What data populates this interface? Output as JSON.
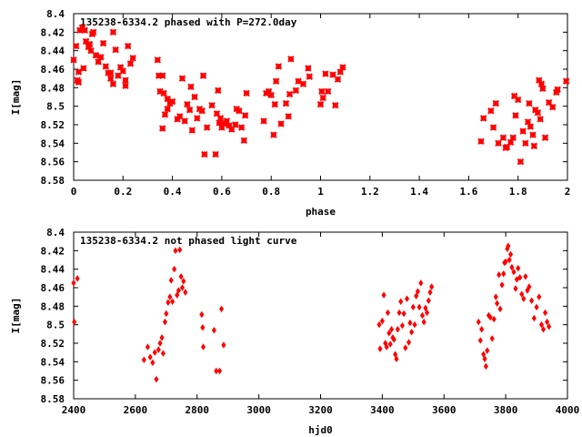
{
  "chart_data": [
    {
      "type": "scatter",
      "title": "135238-6334.2 phased with P=272.0day",
      "xlabel": "phase",
      "ylabel": "I[mag]",
      "xlim": [
        0,
        2
      ],
      "ylim": [
        8.58,
        8.4
      ],
      "y_inverted": true,
      "xticks": [
        "0",
        "0.2",
        "0.4",
        "0.6",
        "0.8",
        "1",
        "1.2",
        "1.4",
        "1.6",
        "1.8",
        "2"
      ],
      "yticks": [
        "8.4",
        "8.42",
        "8.44",
        "8.46",
        "8.48",
        "8.5",
        "8.52",
        "8.54",
        "8.56",
        "8.58"
      ],
      "marker": "star",
      "color": "#ff0000",
      "grid": false,
      "legend": "none",
      "points": [
        [
          0.0,
          8.45
        ],
        [
          0.01,
          8.435
        ],
        [
          0.015,
          8.472
        ],
        [
          0.02,
          8.474
        ],
        [
          0.02,
          8.463
        ],
        [
          0.025,
          8.418
        ],
        [
          0.035,
          8.415
        ],
        [
          0.04,
          8.459
        ],
        [
          0.045,
          8.418
        ],
        [
          0.05,
          8.43
        ],
        [
          0.06,
          8.436
        ],
        [
          0.065,
          8.433
        ],
        [
          0.07,
          8.44
        ],
        [
          0.075,
          8.422
        ],
        [
          0.08,
          8.42
        ],
        [
          0.09,
          8.445
        ],
        [
          0.1,
          8.452
        ],
        [
          0.11,
          8.447
        ],
        [
          0.12,
          8.432
        ],
        [
          0.13,
          8.457
        ],
        [
          0.14,
          8.464
        ],
        [
          0.15,
          8.47
        ],
        [
          0.15,
          8.464
        ],
        [
          0.16,
          8.42
        ],
        [
          0.16,
          8.476
        ],
        [
          0.17,
          8.439
        ],
        [
          0.18,
          8.467
        ],
        [
          0.19,
          8.458
        ],
        [
          0.2,
          8.462
        ],
        [
          0.21,
          8.472
        ],
        [
          0.21,
          8.478
        ],
        [
          0.22,
          8.435
        ],
        [
          0.23,
          8.454
        ],
        [
          0.24,
          8.448
        ],
        [
          0.34,
          8.45
        ],
        [
          0.345,
          8.467
        ],
        [
          0.35,
          8.484
        ],
        [
          0.36,
          8.467
        ],
        [
          0.36,
          8.524
        ],
        [
          0.365,
          8.486
        ],
        [
          0.37,
          8.509
        ],
        [
          0.38,
          8.503
        ],
        [
          0.38,
          8.492
        ],
        [
          0.39,
          8.497
        ],
        [
          0.4,
          8.495
        ],
        [
          0.42,
          8.514
        ],
        [
          0.43,
          8.511
        ],
        [
          0.44,
          8.47
        ],
        [
          0.45,
          8.516
        ],
        [
          0.46,
          8.498
        ],
        [
          0.47,
          8.504
        ],
        [
          0.475,
          8.479
        ],
        [
          0.48,
          8.526
        ],
        [
          0.49,
          8.49
        ],
        [
          0.5,
          8.513
        ],
        [
          0.51,
          8.503
        ],
        [
          0.52,
          8.505
        ],
        [
          0.525,
          8.467
        ],
        [
          0.53,
          8.552
        ],
        [
          0.54,
          8.523
        ],
        [
          0.56,
          8.499
        ],
        [
          0.575,
          8.552
        ],
        [
          0.58,
          8.508
        ],
        [
          0.585,
          8.483
        ],
        [
          0.59,
          8.518
        ],
        [
          0.595,
          8.513
        ],
        [
          0.6,
          8.523
        ],
        [
          0.61,
          8.519
        ],
        [
          0.62,
          8.516
        ],
        [
          0.63,
          8.521
        ],
        [
          0.64,
          8.525
        ],
        [
          0.655,
          8.52
        ],
        [
          0.66,
          8.503
        ],
        [
          0.67,
          8.505
        ],
        [
          0.68,
          8.523
        ],
        [
          0.69,
          8.537
        ],
        [
          0.695,
          8.51
        ],
        [
          0.7,
          8.486
        ],
        [
          0.77,
          8.516
        ],
        [
          0.78,
          8.486
        ],
        [
          0.79,
          8.484
        ],
        [
          0.8,
          8.488
        ],
        [
          0.81,
          8.531
        ],
        [
          0.815,
          8.498
        ],
        [
          0.82,
          8.473
        ],
        [
          0.83,
          8.457
        ],
        [
          0.84,
          8.519
        ],
        [
          0.86,
          8.497
        ],
        [
          0.87,
          8.511
        ],
        [
          0.875,
          8.487
        ],
        [
          0.88,
          8.449
        ],
        [
          0.9,
          8.483
        ],
        [
          0.91,
          8.473
        ],
        [
          0.93,
          8.476
        ],
        [
          0.95,
          8.459
        ],
        [
          0.955,
          8.468
        ],
        [
          1.0,
          8.498
        ],
        [
          1.005,
          8.484
        ],
        [
          1.01,
          8.491
        ],
        [
          1.02,
          8.465
        ],
        [
          1.03,
          8.484
        ],
        [
          1.05,
          8.466
        ],
        [
          1.06,
          8.499
        ],
        [
          1.07,
          8.471
        ],
        [
          1.08,
          8.463
        ],
        [
          1.09,
          8.458
        ],
        [
          1.65,
          8.538
        ],
        [
          1.66,
          8.513
        ],
        [
          1.69,
          8.505
        ],
        [
          1.7,
          8.523
        ],
        [
          1.71,
          8.497
        ],
        [
          1.72,
          8.54
        ],
        [
          1.74,
          8.534
        ],
        [
          1.75,
          8.545
        ],
        [
          1.755,
          8.544
        ],
        [
          1.77,
          8.539
        ],
        [
          1.78,
          8.534
        ],
        [
          1.785,
          8.489
        ],
        [
          1.79,
          8.51
        ],
        [
          1.8,
          8.493
        ],
        [
          1.81,
          8.56
        ],
        [
          1.82,
          8.527
        ],
        [
          1.83,
          8.54
        ],
        [
          1.84,
          8.517
        ],
        [
          1.845,
          8.497
        ],
        [
          1.85,
          8.522
        ],
        [
          1.86,
          8.531
        ],
        [
          1.865,
          8.543
        ],
        [
          1.87,
          8.504
        ],
        [
          1.88,
          8.507
        ],
        [
          1.885,
          8.472
        ],
        [
          1.89,
          8.514
        ],
        [
          1.895,
          8.476
        ],
        [
          1.9,
          8.481
        ],
        [
          1.91,
          8.534
        ],
        [
          1.925,
          8.496
        ],
        [
          1.94,
          8.501
        ],
        [
          1.955,
          8.485
        ],
        [
          1.96,
          8.482
        ],
        [
          1.995,
          8.473
        ]
      ]
    },
    {
      "type": "scatter",
      "title": "135238-6334.2 not phased light curve",
      "xlabel": "hjd0",
      "ylabel": "I[mag]",
      "xlim": [
        2400,
        4000
      ],
      "ylim": [
        8.58,
        8.4
      ],
      "y_inverted": true,
      "xticks": [
        "2400",
        "2600",
        "2800",
        "3000",
        "3200",
        "3400",
        "3600",
        "3800",
        "4000"
      ],
      "yticks": [
        "8.4",
        "8.42",
        "8.44",
        "8.46",
        "8.48",
        "8.5",
        "8.52",
        "8.54",
        "8.56",
        "8.58"
      ],
      "marker": "diamond",
      "color": "#ff0000",
      "grid": false,
      "legend": "none",
      "points": [
        [
          2400,
          8.455
        ],
        [
          2402,
          8.497
        ],
        [
          2412,
          8.45
        ],
        [
          2628,
          8.538
        ],
        [
          2640,
          8.524
        ],
        [
          2648,
          8.535
        ],
        [
          2656,
          8.541
        ],
        [
          2663,
          8.53
        ],
        [
          2668,
          8.559
        ],
        [
          2675,
          8.527
        ],
        [
          2680,
          8.52
        ],
        [
          2686,
          8.514
        ],
        [
          2690,
          8.531
        ],
        [
          2696,
          8.497
        ],
        [
          2700,
          8.488
        ],
        [
          2706,
          8.476
        ],
        [
          2712,
          8.47
        ],
        [
          2716,
          8.452
        ],
        [
          2720,
          8.475
        ],
        [
          2726,
          8.44
        ],
        [
          2730,
          8.42
        ],
        [
          2735,
          8.468
        ],
        [
          2740,
          8.463
        ],
        [
          2744,
          8.419
        ],
        [
          2748,
          8.448
        ],
        [
          2752,
          8.46
        ],
        [
          2756,
          8.453
        ],
        [
          2762,
          8.465
        ],
        [
          2815,
          8.489
        ],
        [
          2818,
          8.503
        ],
        [
          2820,
          8.524
        ],
        [
          2855,
          8.506
        ],
        [
          2862,
          8.55
        ],
        [
          2873,
          8.55
        ],
        [
          2879,
          8.483
        ],
        [
          2886,
          8.522
        ],
        [
          3390,
          8.5
        ],
        [
          3393,
          8.526
        ],
        [
          3400,
          8.496
        ],
        [
          3405,
          8.468
        ],
        [
          3410,
          8.52
        ],
        [
          3414,
          8.524
        ],
        [
          3418,
          8.487
        ],
        [
          3422,
          8.509
        ],
        [
          3426,
          8.521
        ],
        [
          3430,
          8.505
        ],
        [
          3434,
          8.514
        ],
        [
          3438,
          8.516
        ],
        [
          3442,
          8.532
        ],
        [
          3446,
          8.537
        ],
        [
          3450,
          8.505
        ],
        [
          3455,
          8.487
        ],
        [
          3460,
          8.475
        ],
        [
          3465,
          8.501
        ],
        [
          3470,
          8.488
        ],
        [
          3475,
          8.525
        ],
        [
          3480,
          8.472
        ],
        [
          3486,
          8.519
        ],
        [
          3490,
          8.498
        ],
        [
          3495,
          8.508
        ],
        [
          3500,
          8.481
        ],
        [
          3505,
          8.5
        ],
        [
          3510,
          8.469
        ],
        [
          3515,
          8.464
        ],
        [
          3520,
          8.481
        ],
        [
          3525,
          8.455
        ],
        [
          3530,
          8.49
        ],
        [
          3535,
          8.497
        ],
        [
          3540,
          8.482
        ],
        [
          3545,
          8.487
        ],
        [
          3550,
          8.474
        ],
        [
          3555,
          8.465
        ],
        [
          3560,
          8.459
        ],
        [
          3712,
          8.497
        ],
        [
          3718,
          8.517
        ],
        [
          3722,
          8.505
        ],
        [
          3728,
          8.532
        ],
        [
          3732,
          8.537
        ],
        [
          3736,
          8.545
        ],
        [
          3740,
          8.528
        ],
        [
          3745,
          8.49
        ],
        [
          3750,
          8.492
        ],
        [
          3756,
          8.515
        ],
        [
          3762,
          8.494
        ],
        [
          3768,
          8.47
        ],
        [
          3772,
          8.477
        ],
        [
          3778,
          8.446
        ],
        [
          3782,
          8.483
        ],
        [
          3788,
          8.457
        ],
        [
          3793,
          8.445
        ],
        [
          3796,
          8.433
        ],
        [
          3800,
          8.432
        ],
        [
          3805,
          8.418
        ],
        [
          3808,
          8.415
        ],
        [
          3812,
          8.43
        ],
        [
          3816,
          8.424
        ],
        [
          3820,
          8.438
        ],
        [
          3826,
          8.443
        ],
        [
          3832,
          8.461
        ],
        [
          3836,
          8.451
        ],
        [
          3840,
          8.439
        ],
        [
          3846,
          8.449
        ],
        [
          3852,
          8.467
        ],
        [
          3858,
          8.472
        ],
        [
          3864,
          8.448
        ],
        [
          3870,
          8.463
        ],
        [
          3876,
          8.459
        ],
        [
          3884,
          8.474
        ],
        [
          3892,
          8.493
        ],
        [
          3900,
          8.481
        ],
        [
          3908,
          8.47
        ],
        [
          3916,
          8.5
        ],
        [
          3922,
          8.505
        ],
        [
          3928,
          8.487
        ],
        [
          3934,
          8.497
        ],
        [
          3940,
          8.502
        ]
      ]
    }
  ]
}
